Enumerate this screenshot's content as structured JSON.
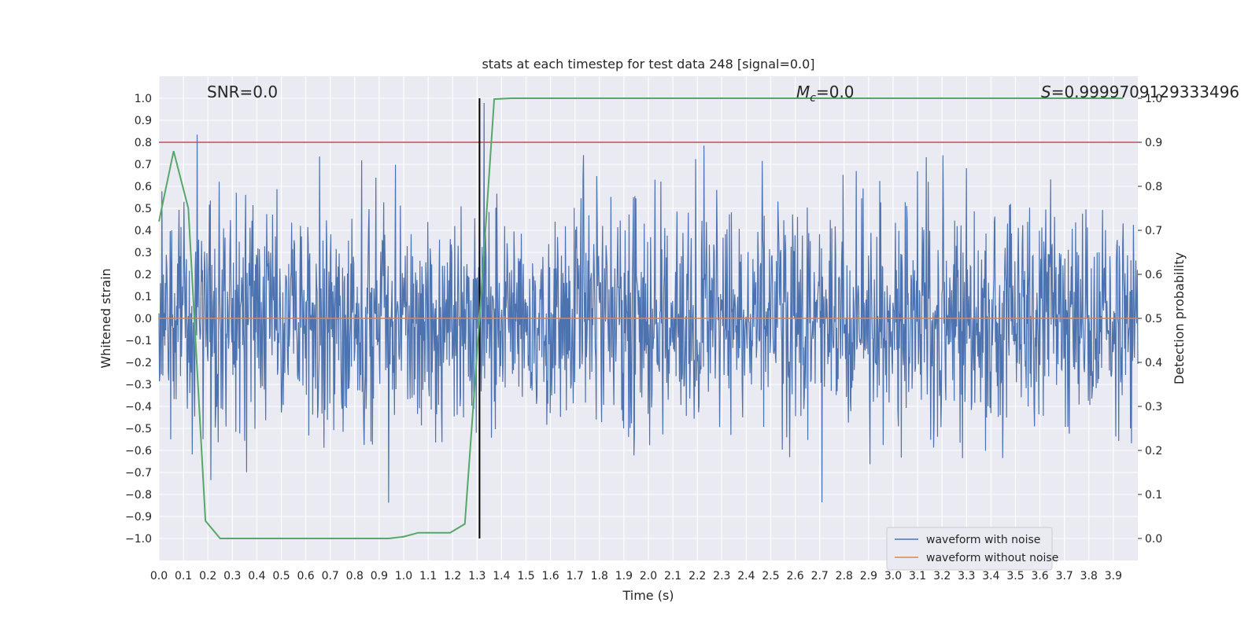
{
  "chart_data": {
    "type": "line",
    "title": "stats at each timestep for test data 248 [signal=0.0]",
    "xlabel": "Time (s)",
    "ylabel_left": "Whitened strain",
    "ylabel_right": "Detection probability",
    "xlim": [
      0.0,
      4.0
    ],
    "ylim_left": [
      -1.1,
      1.1
    ],
    "ylim_right": [
      -0.05,
      1.05
    ],
    "x_ticks": [
      "0.0",
      "0.1",
      "0.2",
      "0.3",
      "0.4",
      "0.5",
      "0.6",
      "0.7",
      "0.8",
      "0.9",
      "1.0",
      "1.1",
      "1.2",
      "1.3",
      "1.4",
      "1.5",
      "1.6",
      "1.7",
      "1.8",
      "1.9",
      "2.0",
      "2.1",
      "2.2",
      "2.3",
      "2.4",
      "2.5",
      "2.6",
      "2.7",
      "2.8",
      "2.9",
      "3.0",
      "3.1",
      "3.2",
      "3.3",
      "3.4",
      "3.5",
      "3.6",
      "3.7",
      "3.8",
      "3.9"
    ],
    "y_ticks_left": [
      "−1.0",
      "−0.9",
      "−0.8",
      "−0.7",
      "−0.6",
      "−0.5",
      "−0.4",
      "−0.3",
      "−0.2",
      "−0.1",
      "0.0",
      "0.1",
      "0.2",
      "0.3",
      "0.4",
      "0.5",
      "0.6",
      "0.7",
      "0.8",
      "0.9",
      "1.0"
    ],
    "y_ticks_right": [
      "0.0",
      "0.1",
      "0.2",
      "0.3",
      "0.4",
      "0.5",
      "0.6",
      "0.7",
      "0.8",
      "0.9",
      "1.0"
    ],
    "grid": true,
    "legend_placement": "lower-right",
    "annotations": {
      "snr": "SNR=0.0",
      "mc_symbol": "M",
      "mc_subscript": "c",
      "mc_value": "=0.0",
      "s_symbol": "S",
      "s_value": "=0.9999709129333496"
    },
    "threshold": {
      "value": 0.9,
      "axis": "right",
      "color": "#c44e52"
    },
    "vertical_marker": {
      "x": 1.31,
      "color": "#000000"
    },
    "series": [
      {
        "name": "waveform with noise",
        "axis": "left",
        "color": "#4c72b0",
        "form": "dense noise, roughly −1.0 to 1.0",
        "samples": 2000,
        "amplitude": 0.26,
        "seed": 248
      },
      {
        "name": "waveform without noise",
        "axis": "left",
        "color": "#dd8452",
        "x": [
          0.0,
          4.0
        ],
        "y": [
          0.0,
          0.0
        ]
      },
      {
        "name": "detection probability",
        "axis": "right",
        "color": "#55a868",
        "x": [
          0.0,
          0.06,
          0.12,
          0.19,
          0.25,
          0.31,
          0.37,
          0.44,
          0.5,
          0.62,
          0.75,
          0.87,
          0.94,
          1.0,
          1.06,
          1.12,
          1.19,
          1.25,
          1.31,
          1.37,
          1.44,
          1.5,
          1.62,
          2.0,
          2.5,
          3.0,
          3.5,
          3.94
        ],
        "y": [
          0.72,
          0.88,
          0.75,
          0.04,
          0.0,
          0.0,
          0.0,
          0.0,
          0.0,
          0.0,
          0.0,
          0.0,
          0.0,
          0.004,
          0.013,
          0.013,
          0.013,
          0.033,
          0.5,
          0.998,
          1.0,
          1.0,
          1.0,
          1.0,
          1.0,
          1.0,
          1.0,
          1.0
        ]
      }
    ]
  }
}
